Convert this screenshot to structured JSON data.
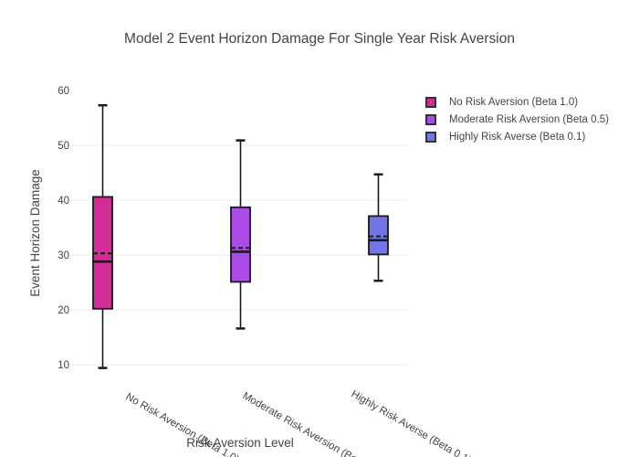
{
  "chart_data": {
    "type": "box",
    "title": "Model 2 Event Horizon Damage For Single Year Risk Aversion",
    "xlabel": "Risk Aversion Level",
    "ylabel": "Event Horizon Damage",
    "ylim": [
      8,
      62
    ],
    "yticks": [
      10,
      20,
      30,
      40,
      50,
      60
    ],
    "grid_ticks": [
      10,
      20,
      30,
      40,
      50
    ],
    "grid": true,
    "legend_position": "right",
    "categories": [
      "No Risk Aversion (Beta 1.0)",
      "Moderate Risk Aversion (Beta 0.5)",
      "Highly Risk Averse (Beta 0.1)"
    ],
    "series": [
      {
        "name": "No Risk Aversion (Beta 1.0)",
        "color": "#D42C96",
        "min": 9.4,
        "q1": 20.2,
        "median": 28.8,
        "mean": 30.3,
        "q3": 40.6,
        "max": 57.3
      },
      {
        "name": "Moderate Risk Aversion (Beta 0.5)",
        "color": "#AB4BE8",
        "min": 16.6,
        "q1": 25.1,
        "median": 30.6,
        "mean": 31.3,
        "q3": 38.7,
        "max": 50.9
      },
      {
        "name": "Highly Risk Averse (Beta 0.1)",
        "color": "#7076E8",
        "min": 25.3,
        "q1": 30.1,
        "median": 32.7,
        "mean": 33.4,
        "q3": 37.1,
        "max": 44.7
      }
    ]
  },
  "style": {
    "background": "#FFFFFF",
    "text_color": "#444444",
    "grid_color": "#ECECEC",
    "box_outline_color": "#1A1A1A",
    "legend_swatch_border": "#333333"
  }
}
